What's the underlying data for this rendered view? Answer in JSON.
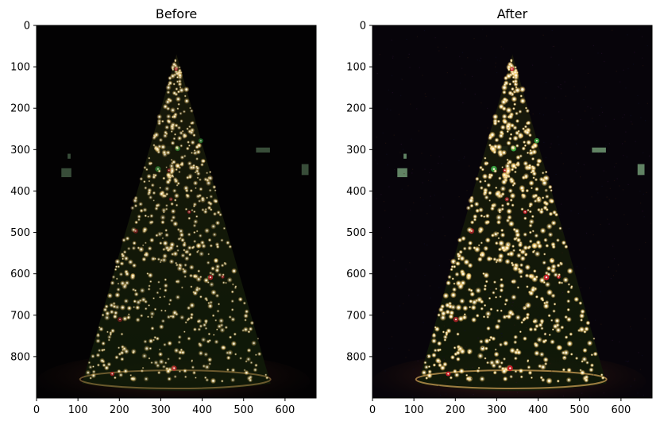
{
  "figure": {
    "panels": [
      {
        "title": "Before",
        "brightness": 0.8,
        "ticks_x": [
          0,
          100,
          200,
          300,
          400,
          500,
          600
        ],
        "ticks_y": [
          0,
          100,
          200,
          300,
          400,
          500,
          600,
          700,
          800
        ]
      },
      {
        "title": "After",
        "brightness": 1.25,
        "ticks_x": [
          0,
          100,
          200,
          300,
          400,
          500,
          600
        ],
        "ticks_y": [
          0,
          100,
          200,
          300,
          400,
          500,
          600,
          700,
          800
        ]
      }
    ],
    "image_extent": {
      "x_max": 675,
      "y_max": 900
    },
    "colors": {
      "sky": "#050306",
      "tree_dark": "#0b1206",
      "tree_mid": "#1b2a10",
      "light_warm": "#fff3c0",
      "light_glow": "#f5d27a",
      "ground": "#2a1210",
      "window": "#9fd9a0"
    }
  }
}
